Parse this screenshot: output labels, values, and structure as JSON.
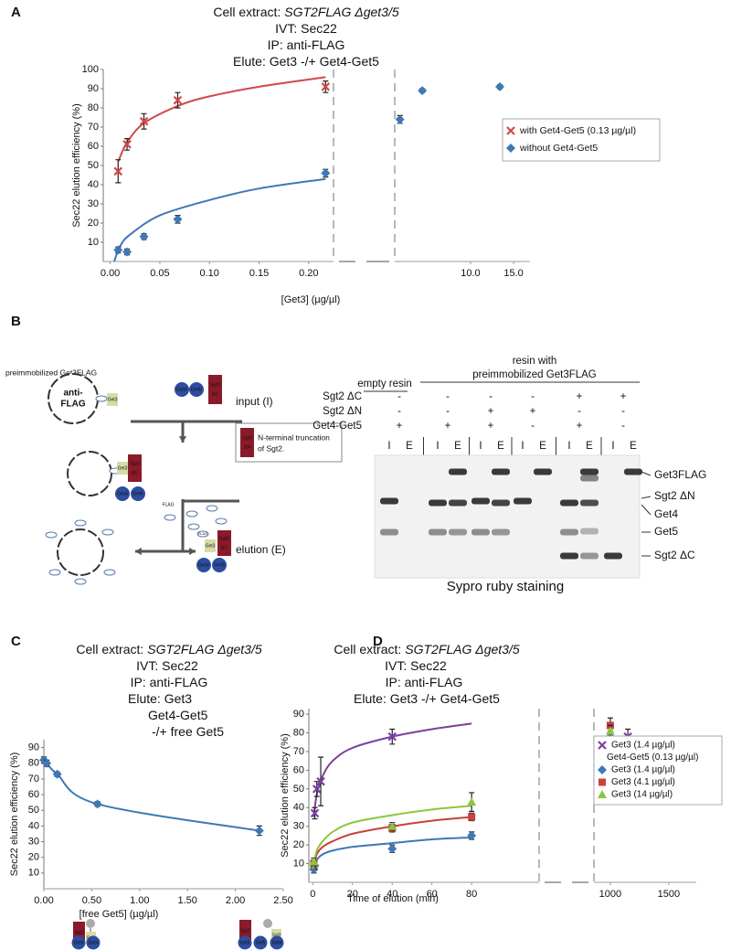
{
  "panel_labels": [
    "A",
    "B",
    "C",
    "D"
  ],
  "chart_data": [
    {
      "type": "scatter",
      "title_lines": [
        [
          "Cell extract:",
          "SGT2FLAG Δget3/5"
        ],
        [
          "IVT: Sec22"
        ],
        [
          "IP: anti-FLAG"
        ],
        [
          "Elute: Get3 -/+ Get4-Get5"
        ]
      ],
      "xlabel": "[Get3] (µg/µl)",
      "ylabel": "Sec22 elution efficiency (%)",
      "ylim": [
        0,
        100
      ],
      "yticks": [
        10,
        20,
        30,
        40,
        50,
        60,
        70,
        80,
        90,
        100
      ],
      "x_segments": [
        {
          "xlim": [
            -0.007,
            0.225
          ],
          "xticks": [
            {
              "value": 0,
              "label": "0.00"
            },
            {
              "value": 0.05,
              "label": "0.05"
            },
            {
              "value": 0.1,
              "label": "0.10"
            },
            {
              "value": 0.15,
              "label": "0.15"
            },
            {
              "value": 0.2,
              "label": "0.20"
            }
          ]
        },
        {
          "xlim": [
            1.2,
            16.9
          ],
          "xticks": [
            {
              "value": 10,
              "label": "10.0"
            },
            {
              "value": 15,
              "label": "15.0"
            }
          ]
        }
      ],
      "legend": "right",
      "series": [
        {
          "name": "with Get4-Get5 (0.13 µg/µl)",
          "color": "#d0494a",
          "marker": "x",
          "x": [
            0.008,
            0.017,
            0.034,
            0.068,
            0.217
          ],
          "values": [
            47,
            61,
            73,
            84,
            91
          ],
          "errors": [
            6,
            3,
            4,
            4,
            3
          ],
          "fit_x": [
            0.008,
            0.017,
            0.034,
            0.068,
            0.1,
            0.15,
            0.217
          ],
          "fit_values": [
            52,
            62,
            72,
            81,
            86,
            91,
            96
          ]
        },
        {
          "name": "without Get4-Get5",
          "color": "#3e78b5",
          "marker": "diamond",
          "x": [
            0.008,
            0.017,
            0.034,
            0.068,
            0.217,
            1.8,
            4.4,
            13.4
          ],
          "values": [
            6,
            5,
            13,
            22,
            46,
            74,
            89,
            91
          ],
          "errors": [
            1.5,
            1.5,
            1.5,
            2,
            2,
            2,
            1,
            1
          ],
          "fit_x": [
            0.004,
            0.01,
            0.02,
            0.05,
            0.1,
            0.15,
            0.217
          ],
          "fit_values": [
            0,
            8,
            14,
            24,
            32,
            38,
            43
          ]
        }
      ]
    },
    {
      "type": "line",
      "title_lines": [
        [
          "Cell extract:",
          "SGT2FLAG Δget3/5"
        ],
        [
          "IVT: Sec22"
        ],
        [
          "IP: anti-FLAG"
        ],
        [
          "Elute: Get3"
        ],
        [
          "Get4-Get5"
        ],
        [
          "-/+ free Get5"
        ]
      ],
      "xlabel": "[free Get5] (µg/µl)",
      "ylabel": "Sec22 elution efficiency (%)",
      "ylim": [
        0,
        95
      ],
      "yticks": [
        10,
        20,
        30,
        40,
        50,
        60,
        70,
        80,
        90
      ],
      "x_segments": [
        {
          "xlim": [
            0,
            2.5
          ],
          "xticks": [
            {
              "value": 0,
              "label": "0.00"
            },
            {
              "value": 0.5,
              "label": "0.50"
            },
            {
              "value": 1,
              "label": "1.00"
            },
            {
              "value": 1.5,
              "label": "1.50"
            },
            {
              "value": 2,
              "label": "2.00"
            },
            {
              "value": 2.5,
              "label": "2.50"
            }
          ]
        }
      ],
      "series": [
        {
          "color": "#3e78b5",
          "marker": "diamond",
          "x": [
            0,
            0.03,
            0.14,
            0.56,
            2.25
          ],
          "values": [
            82,
            80,
            73,
            54,
            37
          ],
          "errors": [
            2,
            2,
            1.5,
            1.5,
            3
          ]
        }
      ]
    },
    {
      "type": "scatter",
      "title_lines": [
        [
          "Cell extract:",
          "SGT2FLAG Δget3/5"
        ],
        [
          "IVT: Sec22"
        ],
        [
          "IP: anti-FLAG"
        ],
        [
          "Elute: Get3 -/+ Get4-Get5"
        ]
      ],
      "xlabel": "Time of elution (min)",
      "ylabel": "Sec22 elution efficiency (%)",
      "ylim": [
        0,
        93
      ],
      "yticks": [
        10,
        20,
        30,
        40,
        50,
        60,
        70,
        80,
        90
      ],
      "x_segments": [
        {
          "xlim": [
            -2,
            114
          ],
          "xticks": [
            0,
            20,
            40,
            60,
            80
          ]
        },
        {
          "xlim": [
            860,
            1735
          ],
          "xticks": [
            1000,
            1500
          ]
        }
      ],
      "legend": "right",
      "series": [
        {
          "name": "Get3 (1.4 µg/µl)",
          "name2": "Get4-Get5 (0.13 µg/µl)",
          "color": "#7b3fa0",
          "marker": "x",
          "x": [
            1,
            2,
            4,
            40,
            1150
          ],
          "values": [
            37,
            50,
            54,
            78,
            78
          ],
          "errors": [
            3,
            4,
            13,
            4,
            4
          ],
          "fit_x": [
            0.5,
            2,
            5,
            10,
            20,
            40,
            60,
            80
          ],
          "fit_values": [
            35,
            47,
            57,
            65,
            72,
            78,
            82,
            85
          ]
        },
        {
          "name": "Get3 (1.4 µg/µl)",
          "color": "#3e78b5",
          "marker": "diamond",
          "x": [
            0.5,
            1,
            40,
            80,
            1000
          ],
          "values": [
            7,
            9,
            18,
            25,
            78
          ],
          "errors": [
            2,
            2,
            2,
            2,
            3
          ],
          "fit_x": [
            0,
            2,
            5,
            10,
            20,
            40,
            60,
            80
          ],
          "fit_values": [
            6,
            12,
            15,
            17,
            19,
            21,
            23,
            24
          ]
        },
        {
          "name": "Get3 (4.1 µg/µl)",
          "color": "#c9403c",
          "marker": "square",
          "x": [
            0.5,
            40,
            80,
            1000
          ],
          "values": [
            10,
            29,
            35,
            84
          ],
          "errors": [
            2,
            2,
            2,
            4
          ],
          "fit_x": [
            0,
            2,
            5,
            10,
            20,
            40,
            60,
            80
          ],
          "fit_values": [
            7,
            15,
            19,
            22,
            26,
            30,
            33,
            35
          ]
        },
        {
          "name": "Get3 (14  µg/µl)",
          "color": "#8cc63f",
          "marker": "triangle",
          "x": [
            0.5,
            40,
            80,
            1000
          ],
          "values": [
            11,
            30,
            43,
            81
          ],
          "errors": [
            2,
            2,
            5,
            3
          ],
          "fit_x": [
            0,
            2,
            5,
            10,
            20,
            40,
            60,
            80
          ],
          "fit_values": [
            7,
            17,
            22,
            27,
            32,
            36,
            39,
            41
          ]
        }
      ]
    }
  ],
  "panel_b": {
    "schematic": {
      "title": "preimmobilized Get3FLAG",
      "resin": [
        "anti-",
        "FLAG"
      ],
      "input": "input (I)",
      "elution": "elution (E)",
      "note": [
        "N-terminal truncation",
        "of Sgt2."
      ],
      "proteins": {
        "get3": "Get3",
        "get4": "Get4",
        "get5": "Get5",
        "sgt2": "Sgt2",
        "dc": "ΔC",
        "dn": "ΔN",
        "flag": "FLAG"
      }
    },
    "gel": {
      "groups": [
        [
          "empty resin"
        ],
        [
          "resin with",
          "preimmobilized Get3FLAG"
        ]
      ],
      "conditions": [
        {
          "name": "Sgt2 ΔC",
          "signs": [
            "-",
            "-",
            "-",
            "-",
            "+",
            "+"
          ]
        },
        {
          "name": "Sgt2 ΔN",
          "signs": [
            "-",
            "-",
            "+",
            "+",
            "-",
            "-"
          ]
        },
        {
          "name": "Get4-Get5",
          "signs": [
            "+",
            "+",
            "+",
            "-",
            "+",
            "-"
          ]
        }
      ],
      "lanes": [
        "I",
        "E"
      ],
      "bands": [
        "Get3FLAG",
        "Sgt2 ΔN",
        "Get4",
        "Get5",
        "Sgt2 ΔC"
      ],
      "caption": "Sypro ruby staining"
    }
  },
  "panel_c_icons": {
    "sgt2": "Sgt2",
    "get3": "Get3",
    "get4": "Get4",
    "get5": "Get5"
  }
}
